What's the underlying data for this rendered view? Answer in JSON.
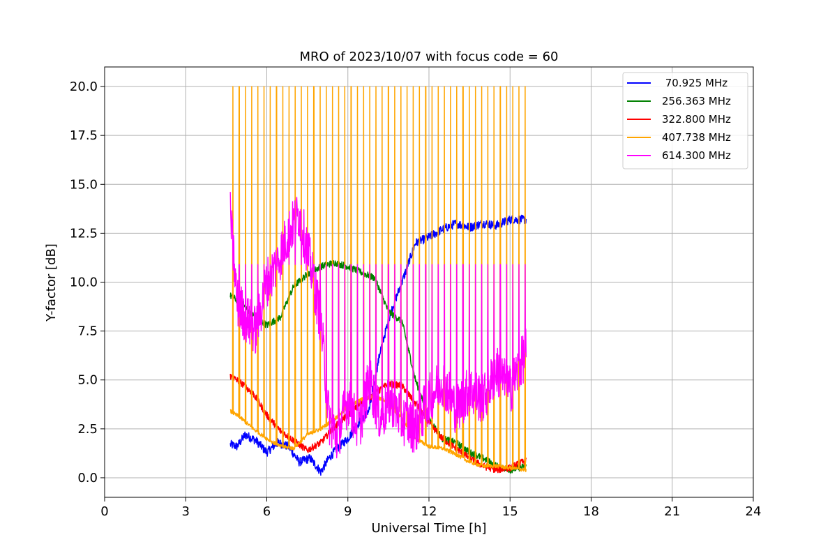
{
  "chart_data": {
    "type": "line",
    "title": "MRO of 2023/10/07 with focus code = 60",
    "xlabel": "Universal Time [h]",
    "ylabel": "Y-factor [dB]",
    "xlim": [
      0,
      24
    ],
    "ylim": [
      -1.0,
      21.0
    ],
    "xticks": [
      0,
      3,
      6,
      9,
      12,
      15,
      18,
      21,
      24
    ],
    "xtick_labels": [
      "0",
      "3",
      "6",
      "9",
      "12",
      "15",
      "18",
      "21",
      "24"
    ],
    "yticks": [
      0.0,
      2.5,
      5.0,
      7.5,
      10.0,
      12.5,
      15.0,
      17.5,
      20.0
    ],
    "ytick_labels": [
      "0.0",
      "2.5",
      "5.0",
      "7.5",
      "10.0",
      "12.5",
      "15.0",
      "17.5",
      "20.0"
    ],
    "grid": true,
    "legend_position": "top-right",
    "series": [
      {
        "name": " 70.925 MHz",
        "color": "#0000ff",
        "x": [
          4.65,
          4.9,
          5.2,
          5.6,
          6.0,
          6.4,
          6.8,
          7.2,
          7.6,
          8.0,
          8.3,
          8.6,
          9.0,
          9.4,
          9.8,
          10.2,
          10.6,
          11.0,
          11.5,
          12.0,
          12.5,
          13.0,
          13.5,
          14.0,
          14.5,
          15.0,
          15.6
        ],
        "y": [
          1.7,
          1.6,
          2.2,
          1.9,
          1.3,
          1.8,
          1.6,
          0.8,
          1.0,
          0.3,
          1.0,
          1.5,
          2.0,
          2.8,
          3.5,
          6.5,
          8.5,
          10.0,
          12.0,
          12.3,
          12.7,
          13.0,
          12.8,
          13.0,
          12.9,
          13.2,
          13.2
        ]
      },
      {
        "name": "256.363 MHz",
        "color": "#008000",
        "x": [
          4.65,
          5.0,
          5.5,
          6.0,
          6.5,
          7.0,
          7.5,
          8.0,
          8.5,
          9.0,
          9.5,
          10.0,
          10.5,
          11.0,
          11.5,
          12.0,
          12.5,
          13.0,
          13.5,
          14.0,
          14.5,
          15.0,
          15.6
        ],
        "y": [
          9.3,
          9.0,
          8.3,
          7.8,
          8.2,
          9.8,
          10.4,
          10.8,
          11.0,
          10.8,
          10.5,
          10.2,
          8.5,
          8.0,
          5.0,
          3.0,
          2.0,
          1.8,
          1.3,
          1.0,
          0.6,
          0.4,
          0.6
        ]
      },
      {
        "name": "322.800 MHz",
        "color": "#ff0000",
        "x": [
          4.65,
          5.0,
          5.5,
          6.0,
          6.5,
          7.0,
          7.5,
          8.0,
          8.5,
          9.0,
          9.5,
          10.0,
          10.5,
          11.0,
          11.5,
          12.0,
          12.5,
          13.0,
          13.5,
          14.0,
          14.5,
          15.0,
          15.6
        ],
        "y": [
          5.2,
          4.9,
          4.3,
          3.2,
          2.4,
          1.9,
          1.4,
          1.8,
          2.6,
          3.2,
          3.8,
          4.3,
          4.8,
          4.7,
          3.8,
          2.8,
          2.0,
          1.5,
          1.0,
          0.6,
          0.4,
          0.5,
          0.9
        ]
      },
      {
        "name": "407.738 MHz",
        "color": "#ffa500",
        "x": [
          4.65,
          5.0,
          5.5,
          6.0,
          6.5,
          7.0,
          7.5,
          8.0,
          8.5,
          9.0,
          9.5,
          10.0,
          10.5,
          11.0,
          11.5,
          12.0,
          12.5,
          13.0,
          13.5,
          14.0,
          14.5,
          15.0,
          15.6
        ],
        "y": [
          3.4,
          3.1,
          2.5,
          2.0,
          1.6,
          1.5,
          2.2,
          2.5,
          3.0,
          3.6,
          4.0,
          4.2,
          3.8,
          3.0,
          2.0,
          1.6,
          1.5,
          1.2,
          0.8,
          0.6,
          0.6,
          0.5,
          0.4
        ],
        "calibration_spike_level": 20.0
      },
      {
        "name": "614.300 MHz",
        "color": "#ff00ff",
        "x": [
          4.65,
          4.9,
          5.2,
          5.6,
          6.0,
          6.4,
          6.8,
          7.2,
          7.6,
          8.0,
          8.3,
          8.6,
          9.0,
          9.4,
          9.8,
          10.2,
          10.6,
          11.0,
          11.5,
          12.0,
          12.5,
          13.0,
          13.5,
          14.0,
          14.5,
          15.0,
          15.6
        ],
        "y": [
          13.5,
          9.0,
          8.2,
          7.5,
          10.0,
          11.0,
          12.5,
          13.5,
          11.0,
          8.0,
          3.0,
          2.0,
          4.0,
          2.5,
          5.0,
          3.0,
          4.0,
          3.0,
          2.5,
          4.0,
          5.0,
          3.5,
          4.5,
          4.0,
          5.5,
          4.5,
          6.5
        ],
        "calibration_spike_level": 10.9
      }
    ],
    "calibration_spikes_x": [
      4.75,
      4.98,
      5.21,
      5.44,
      5.67,
      5.9,
      6.13,
      6.36,
      6.59,
      6.82,
      7.05,
      7.28,
      7.51,
      7.74,
      7.97,
      8.2,
      8.43,
      8.66,
      8.89,
      9.12,
      9.35,
      9.58,
      9.81,
      10.04,
      10.27,
      10.5,
      10.73,
      10.96,
      11.19,
      11.42,
      11.65,
      11.88,
      12.11,
      12.34,
      12.57,
      12.8,
      13.03,
      13.26,
      13.49,
      13.72,
      13.95,
      14.18,
      14.41,
      14.64,
      14.87,
      15.1,
      15.33,
      15.56
    ]
  }
}
